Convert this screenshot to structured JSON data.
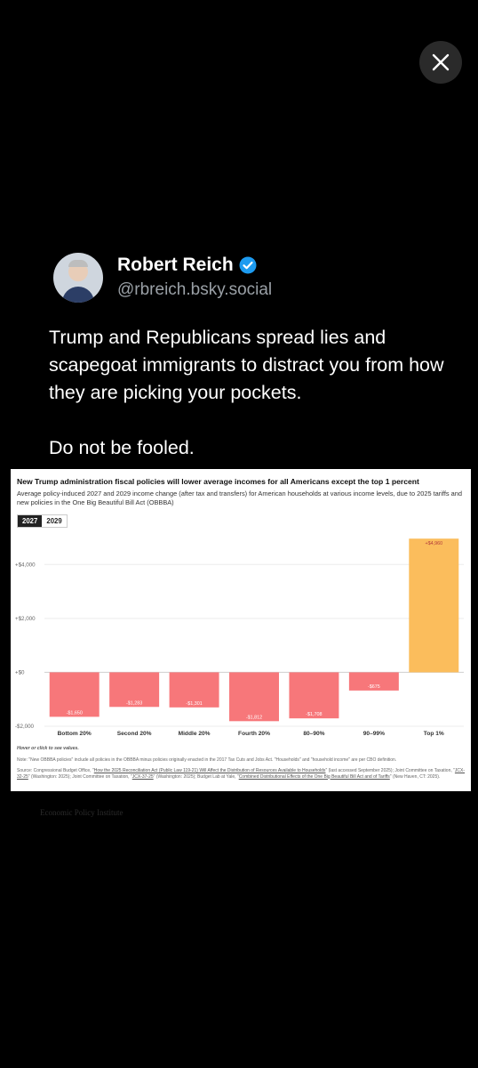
{
  "viewer": {
    "close_icon": "close-icon"
  },
  "post": {
    "author_name": "Robert Reich",
    "handle": "@rbreich.bsky.social",
    "verified": true,
    "text_paragraph_1": "Trump and Republicans spread lies and scapegoat immigrants to distract you from how they are picking your pockets.",
    "text_paragraph_2": "Do not be fooled."
  },
  "chart_card": {
    "title": "New Trump administration fiscal policies will lower average incomes for all Americans except the top 1 percent",
    "subtitle": "Average policy-induced 2027 and 2029 income change (after tax and transfers) for American households at various income levels, due to 2025 tariffs and new policies in the One Big Beautiful Bill Act (OBBBA)",
    "tabs": [
      {
        "label": "2027",
        "active": true
      },
      {
        "label": "2029",
        "active": false
      }
    ],
    "hover_note": "Hover or click to see values.",
    "note": "Note: \"New OBBBA policies\" include all policies in the OBBBA minus policies originally enacted in the 2017 Tax Cuts and Jobs Act. \"Households\" and \"household income\" are per CBO definition.",
    "source_prefix": "Source: Congressional Budget Office, \"",
    "source_link_1": "How the 2025 Reconciliation Act (Public Law 119-21) Will Affect the Distribution of Resources Available to Households",
    "source_mid_1": "\" (last accessed September 2025); Joint Committee on Taxation, \"",
    "source_link_2": "JCX-32-25",
    "source_mid_2": "\" (Washington: 2025); Joint Committee on Taxation, \"",
    "source_link_3": "JCX-37-25",
    "source_mid_3": "\" (Washington: 2025); Budget Lab at Yale, \"",
    "source_link_4": "Combined Distributional Effects of the One Big Beautiful Bill Act and of Tariffs",
    "source_suffix": "\" (New Haven, CT: 2025).",
    "attribution": "Economic Policy Institute"
  },
  "chart_data": {
    "type": "bar",
    "categories": [
      "Bottom 20%",
      "Second 20%",
      "Middle 20%",
      "Fourth 20%",
      "80–90%",
      "90–99%",
      "Top 1%"
    ],
    "values": [
      -1650,
      -1283,
      -1301,
      -1812,
      -1708,
      -675,
      4960
    ],
    "value_labels": [
      "-$1,650",
      "-$1,283",
      "-$1,301",
      "-$1,812",
      "-$1,708",
      "-$675",
      "+$4,960"
    ],
    "ylim": [
      -2000,
      5000
    ],
    "yticks": [
      -2000,
      0,
      2000,
      4000
    ],
    "ytick_labels": [
      "-$2,000",
      "+$0",
      "+$2,000",
      "+$4,000"
    ],
    "grid": true,
    "colors": {
      "negative": "#f7777a",
      "positive": "#fbbd5c"
    }
  }
}
